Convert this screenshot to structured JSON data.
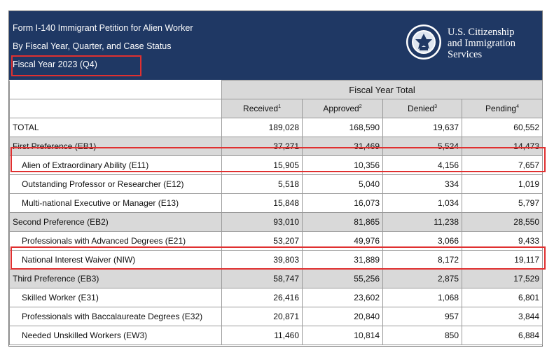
{
  "header": {
    "title_line1": "Form I-140 Immigrant Petition for Alien Worker",
    "title_line2": "By Fiscal Year, Quarter, and Case Status",
    "fiscal_year": "Fiscal Year 2023 (Q4)",
    "org_line1": "U.S. Citizenship",
    "org_line2": "and Immigration",
    "org_line3": "Services",
    "seal_icon": "dhs-seal-icon",
    "bg_color": "#1f3864"
  },
  "table": {
    "group_header": "Fiscal Year Total",
    "columns": [
      {
        "label": "Received",
        "note": "1"
      },
      {
        "label": "Approved",
        "note": "2"
      },
      {
        "label": "Denied",
        "note": "3"
      },
      {
        "label": "Pending",
        "note": "4"
      }
    ],
    "rows": [
      {
        "label": "TOTAL",
        "values": [
          "189,028",
          "168,590",
          "19,637",
          "60,552"
        ]
      },
      {
        "label": "First Preference (EB1)",
        "values": [
          "37,271",
          "31,469",
          "5,524",
          "14,473"
        ]
      },
      {
        "label": "Alien of Extraordinary Ability (E11)",
        "values": [
          "15,905",
          "10,356",
          "4,156",
          "7,657"
        ]
      },
      {
        "label": "Outstanding Professor or Researcher (E12)",
        "values": [
          "5,518",
          "5,040",
          "334",
          "1,019"
        ]
      },
      {
        "label": "Multi-national Executive or Manager (E13)",
        "values": [
          "15,848",
          "16,073",
          "1,034",
          "5,797"
        ]
      },
      {
        "label": "Second Preference (EB2)",
        "values": [
          "93,010",
          "81,865",
          "11,238",
          "28,550"
        ]
      },
      {
        "label": "Professionals with Advanced Degrees (E21)",
        "values": [
          "53,207",
          "49,976",
          "3,066",
          "9,433"
        ]
      },
      {
        "label": "National Interest Waiver (NIW)",
        "values": [
          "39,803",
          "31,889",
          "8,172",
          "19,117"
        ]
      },
      {
        "label": "Third Preference (EB3)",
        "values": [
          "58,747",
          "55,256",
          "2,875",
          "17,529"
        ]
      },
      {
        "label": "Skilled Worker (E31)",
        "values": [
          "26,416",
          "23,602",
          "1,068",
          "6,801"
        ]
      },
      {
        "label": "Professionals with Baccalaureate Degrees (E32)",
        "values": [
          "20,871",
          "20,840",
          "957",
          "3,844"
        ]
      },
      {
        "label": "Needed Unskilled Workers (EW3)",
        "values": [
          "11,460",
          "10,814",
          "850",
          "6,884"
        ]
      }
    ]
  },
  "highlight_color": "#e03030"
}
